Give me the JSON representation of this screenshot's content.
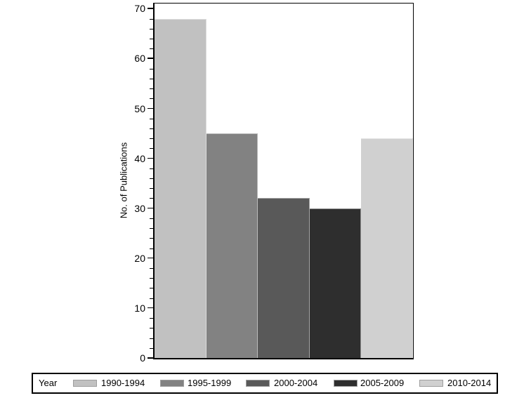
{
  "chart_data": {
    "type": "bar",
    "title": "",
    "xlabel": "",
    "ylabel": "No. of Publications",
    "categories": [
      "1990-1994",
      "1995-1999",
      "2000-2004",
      "2005-2009",
      "2010-2014"
    ],
    "values": [
      68,
      45,
      32,
      30,
      44
    ],
    "bar_colors": [
      "#c1c1c1",
      "#828282",
      "#595959",
      "#2e2e2e",
      "#d0d0d0"
    ],
    "ylim": [
      0,
      71
    ],
    "yticks": [
      0,
      10,
      20,
      30,
      40,
      50,
      60,
      70
    ],
    "minor_tick_interval": 2,
    "grid": false,
    "background_color": "#ffffff",
    "legend": {
      "title": "Year",
      "position": "bottom",
      "entries": [
        {
          "label": "1990-1994",
          "color": "#c1c1c1"
        },
        {
          "label": "1995-1999",
          "color": "#828282"
        },
        {
          "label": "2000-2004",
          "color": "#595959"
        },
        {
          "label": "2005-2009",
          "color": "#2e2e2e"
        },
        {
          "label": "2010-2014",
          "color": "#d0d0d0"
        }
      ]
    }
  }
}
